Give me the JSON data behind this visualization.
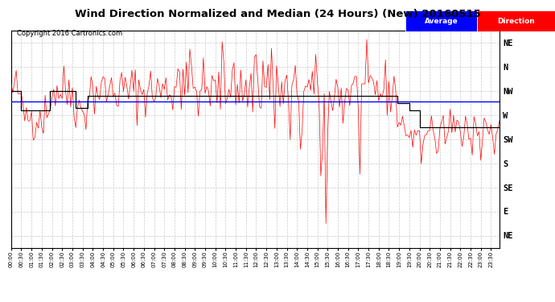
{
  "title": "Wind Direction Normalized and Median (24 Hours) (New) 20160515",
  "copyright": "Copyright 2016 Cartronics.com",
  "legend_labels": [
    "Average",
    "Direction"
  ],
  "legend_colors": [
    "blue",
    "red"
  ],
  "ytick_labels": [
    "NE",
    "N",
    "NW",
    "W",
    "SW",
    "S",
    "SE",
    "E",
    "NE"
  ],
  "ytick_values": [
    9,
    8,
    7,
    6,
    5,
    4,
    3,
    2,
    1
  ],
  "ylim": [
    0.5,
    9.5
  ],
  "xlim": [
    0,
    287
  ],
  "background_color": "#ffffff",
  "plot_bg": "#ffffff",
  "grid_color": "#bbbbbb",
  "title_fontsize": 10,
  "avg_line_value": 6.55,
  "seed": 42
}
